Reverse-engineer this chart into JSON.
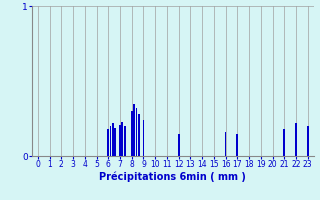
{
  "title": "",
  "xlabel": "Précipitations 6min ( mm )",
  "bar_x": [
    6,
    6.2,
    6.4,
    6.6,
    7.0,
    7.2,
    7.4,
    8.0,
    8.2,
    8.4,
    8.6,
    9.0,
    12.0,
    16.0,
    17.0,
    21.0,
    22.0,
    23.0
  ],
  "bar_h": [
    0.18,
    0.2,
    0.22,
    0.19,
    0.21,
    0.23,
    0.2,
    0.3,
    0.35,
    0.32,
    0.28,
    0.24,
    0.15,
    0.16,
    0.15,
    0.18,
    0.22,
    0.2
  ],
  "ylim": [
    0,
    1.0
  ],
  "yticks": [
    0,
    1
  ],
  "xlim": [
    -0.5,
    23.5
  ],
  "xticks": [
    0,
    1,
    2,
    3,
    4,
    5,
    6,
    7,
    8,
    9,
    10,
    11,
    12,
    13,
    14,
    15,
    16,
    17,
    18,
    19,
    20,
    21,
    22,
    23
  ],
  "bar_color": "#0000cc",
  "bg_color": "#d6f5f5",
  "grid_color": "#a0a0a0",
  "xlabel_color": "#0000cc",
  "tick_color": "#0000cc",
  "bar_width": 0.15
}
